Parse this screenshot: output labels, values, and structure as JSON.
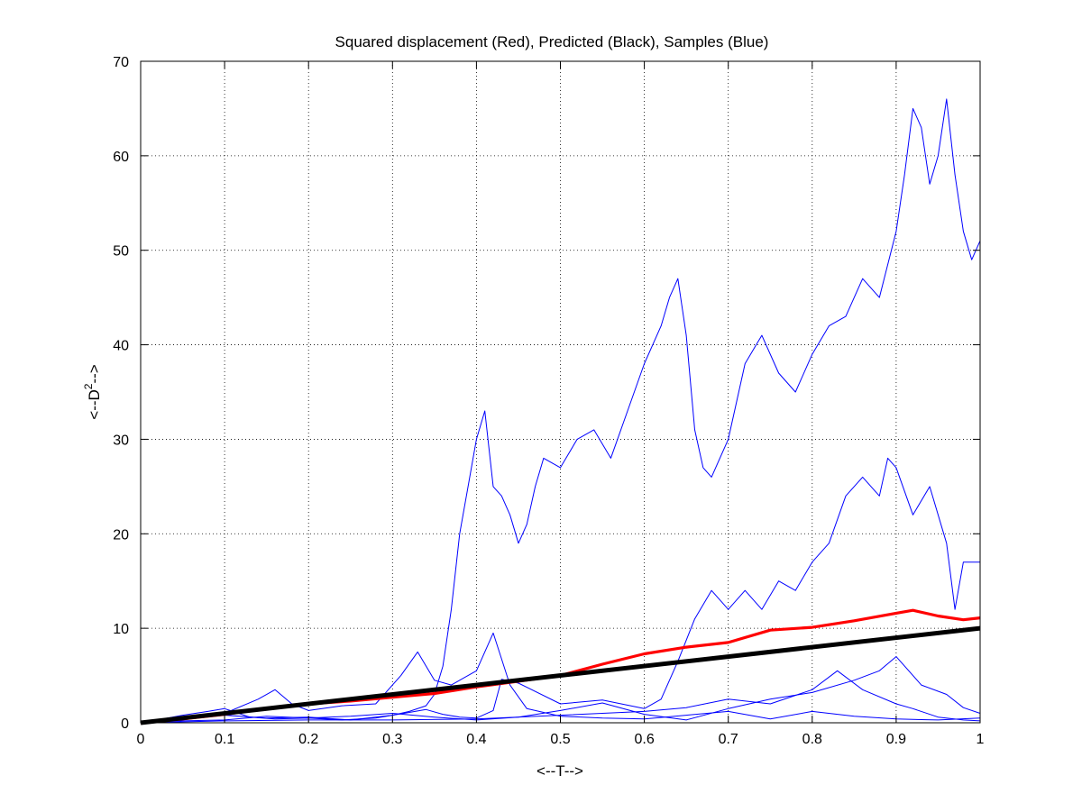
{
  "chart_data": {
    "type": "line",
    "title": "Squared displacement (Red), Predicted (Black), Samples (Blue)",
    "xlabel": "<--T-->",
    "ylabel_prefix": "<--D",
    "ylabel_sup": "2",
    "ylabel_suffix": "-->",
    "xlim": [
      0,
      1
    ],
    "ylim": [
      0,
      70
    ],
    "xticks": [
      0,
      0.1,
      0.2,
      0.3,
      0.4,
      0.5,
      0.6,
      0.7,
      0.8,
      0.9,
      1
    ],
    "xtick_labels": [
      "0",
      "0.1",
      "0.2",
      "0.3",
      "0.4",
      "0.5",
      "0.6",
      "0.7",
      "0.8",
      "0.9",
      "1"
    ],
    "yticks": [
      0,
      10,
      20,
      30,
      40,
      50,
      60,
      70
    ],
    "ytick_labels": [
      "0",
      "10",
      "20",
      "30",
      "40",
      "50",
      "60",
      "70"
    ],
    "grid": true,
    "grid_style": "dotted",
    "colors": {
      "samples": "#0000ff",
      "mean": "#ff0000",
      "predicted": "#000000"
    },
    "series": [
      {
        "role": "sample",
        "color": "#0000ff",
        "x": [
          0,
          0.02,
          0.05,
          0.08,
          0.1,
          0.13,
          0.16,
          0.2,
          0.24,
          0.28,
          0.3,
          0.32,
          0.34,
          0.35,
          0.36,
          0.37,
          0.38,
          0.39,
          0.4,
          0.41,
          0.42,
          0.43,
          0.44,
          0.45,
          0.46,
          0.47,
          0.48,
          0.5,
          0.52,
          0.54,
          0.56,
          0.58,
          0.6,
          0.62,
          0.63,
          0.64,
          0.65,
          0.66,
          0.67,
          0.68,
          0.7,
          0.72,
          0.74,
          0.76,
          0.78,
          0.8,
          0.82,
          0.84,
          0.86,
          0.88,
          0.9,
          0.91,
          0.92,
          0.93,
          0.94,
          0.95,
          0.96,
          0.97,
          0.98,
          0.99,
          1
        ],
        "y": [
          0,
          0.3,
          0.8,
          1.2,
          1.5,
          0.6,
          0.4,
          0.5,
          0.3,
          0.5,
          0.8,
          1.2,
          1.8,
          3,
          6,
          12,
          20,
          25,
          30,
          33,
          25,
          24,
          22,
          19,
          21,
          25,
          28,
          27,
          30,
          31,
          28,
          33,
          38,
          42,
          45,
          47,
          41,
          31,
          27,
          26,
          30,
          38,
          41,
          37,
          35,
          39,
          42,
          43,
          47,
          45,
          52,
          58,
          65,
          63,
          57,
          60,
          66,
          58,
          52,
          49,
          51
        ]
      },
      {
        "role": "sample",
        "color": "#0000ff",
        "x": [
          0,
          0.05,
          0.1,
          0.15,
          0.2,
          0.25,
          0.3,
          0.32,
          0.34,
          0.36,
          0.38,
          0.4,
          0.42,
          0.43,
          0.45,
          0.5,
          0.55,
          0.6,
          0.62,
          0.64,
          0.66,
          0.68,
          0.7,
          0.72,
          0.74,
          0.76,
          0.78,
          0.8,
          0.82,
          0.84,
          0.86,
          0.88,
          0.89,
          0.9,
          0.92,
          0.94,
          0.96,
          0.97,
          0.98,
          1
        ],
        "y": [
          0,
          0.4,
          0.8,
          0.5,
          0.6,
          0.3,
          0.8,
          1.1,
          1.4,
          0.9,
          0.6,
          0.5,
          1.3,
          4.6,
          4.2,
          2,
          2.4,
          1.5,
          2.5,
          6.5,
          11,
          14,
          12,
          14,
          12,
          15,
          14,
          17,
          19,
          24,
          26,
          24,
          28,
          27,
          22,
          25,
          19,
          12,
          17,
          17
        ]
      },
      {
        "role": "sample",
        "color": "#0000ff",
        "x": [
          0,
          0.05,
          0.1,
          0.14,
          0.16,
          0.18,
          0.2,
          0.24,
          0.28,
          0.31,
          0.33,
          0.35,
          0.37,
          0.4,
          0.42,
          0.44,
          0.46,
          0.5,
          0.55,
          0.6,
          0.65,
          0.7,
          0.75,
          0.8,
          0.85,
          0.9,
          0.95,
          1
        ],
        "y": [
          0,
          0.5,
          1,
          2.5,
          3.5,
          2,
          1.3,
          1.8,
          2,
          5,
          7.5,
          4.5,
          4,
          5.5,
          9.5,
          4,
          1.5,
          0.7,
          0.5,
          0.4,
          0.8,
          1.2,
          0.4,
          1.2,
          0.7,
          0.4,
          0.3,
          0.5
        ]
      },
      {
        "role": "sample",
        "color": "#0000ff",
        "x": [
          0,
          0.05,
          0.1,
          0.15,
          0.2,
          0.25,
          0.3,
          0.35,
          0.4,
          0.45,
          0.5,
          0.55,
          0.6,
          0.65,
          0.7,
          0.75,
          0.8,
          0.85,
          0.88,
          0.9,
          0.93,
          0.96,
          0.98,
          1
        ],
        "y": [
          0,
          0.2,
          0.3,
          0.7,
          0.5,
          0.7,
          1,
          0.6,
          0.3,
          0.6,
          1.3,
          2.1,
          0.9,
          0.3,
          1.5,
          2.5,
          3.2,
          4.5,
          5.5,
          7,
          4,
          3,
          1.6,
          1
        ]
      },
      {
        "role": "sample",
        "color": "#0000ff",
        "x": [
          0,
          0.1,
          0.2,
          0.3,
          0.4,
          0.5,
          0.6,
          0.65,
          0.7,
          0.75,
          0.8,
          0.83,
          0.86,
          0.9,
          0.92,
          0.95,
          0.98,
          1
        ],
        "y": [
          0,
          0.2,
          0.3,
          0.3,
          0.4,
          0.8,
          1.2,
          1.6,
          2.5,
          2,
          3.5,
          5.5,
          3.5,
          2,
          1.5,
          0.6,
          0.3,
          0.2
        ]
      },
      {
        "role": "mean",
        "color": "#ff0000",
        "x": [
          0,
          0.05,
          0.1,
          0.15,
          0.2,
          0.25,
          0.3,
          0.35,
          0.4,
          0.45,
          0.5,
          0.55,
          0.6,
          0.65,
          0.7,
          0.75,
          0.8,
          0.85,
          0.9,
          0.92,
          0.95,
          0.98,
          1
        ],
        "y": [
          0,
          0.4,
          0.9,
          1.5,
          2,
          2.3,
          2.7,
          3.1,
          3.8,
          4.4,
          5,
          6.2,
          7.3,
          8,
          8.5,
          9.8,
          10.1,
          10.8,
          11.6,
          11.9,
          11.3,
          10.9,
          11.1
        ]
      },
      {
        "role": "predicted",
        "color": "#000000",
        "x": [
          0,
          1
        ],
        "y": [
          0,
          10
        ]
      }
    ]
  }
}
